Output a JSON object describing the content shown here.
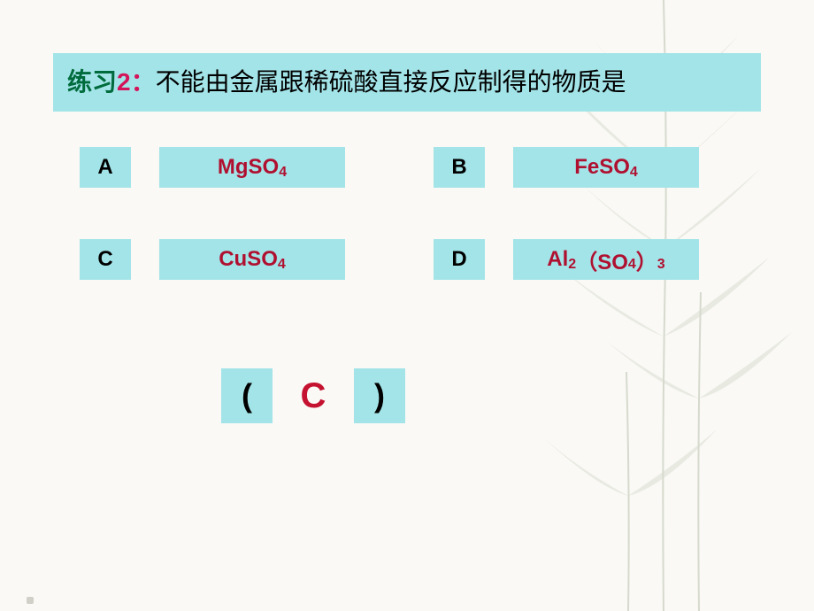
{
  "question": {
    "label_text": "练习",
    "label_num": "2：",
    "body": "不能由金属跟稀硫酸直接反应制得的物质是"
  },
  "options": {
    "a": {
      "letter": "A",
      "formula_main": "MgSO",
      "formula_sub": "4"
    },
    "b": {
      "letter": "B",
      "formula_main": "FeSO",
      "formula_sub": "4"
    },
    "c": {
      "letter": "C",
      "formula_main": "CuSO",
      "formula_sub": "4"
    },
    "d": {
      "letter": "D",
      "formula_parts": [
        "Al",
        "2",
        "（SO",
        "4",
        "）",
        "3"
      ],
      "formula_types": [
        "main",
        "sub",
        "main",
        "sub",
        "main",
        "sub"
      ]
    }
  },
  "answer": {
    "open": "(",
    "value": "C",
    "close": ")"
  },
  "colors": {
    "box_bg": "#a3e4e8",
    "formula_text": "#b01030",
    "answer_text": "#c41230",
    "label_green": "#006b3c",
    "label_pink": "#d4145a",
    "page_bg": "#faf9f5",
    "bamboo": "#8a9a7a"
  }
}
